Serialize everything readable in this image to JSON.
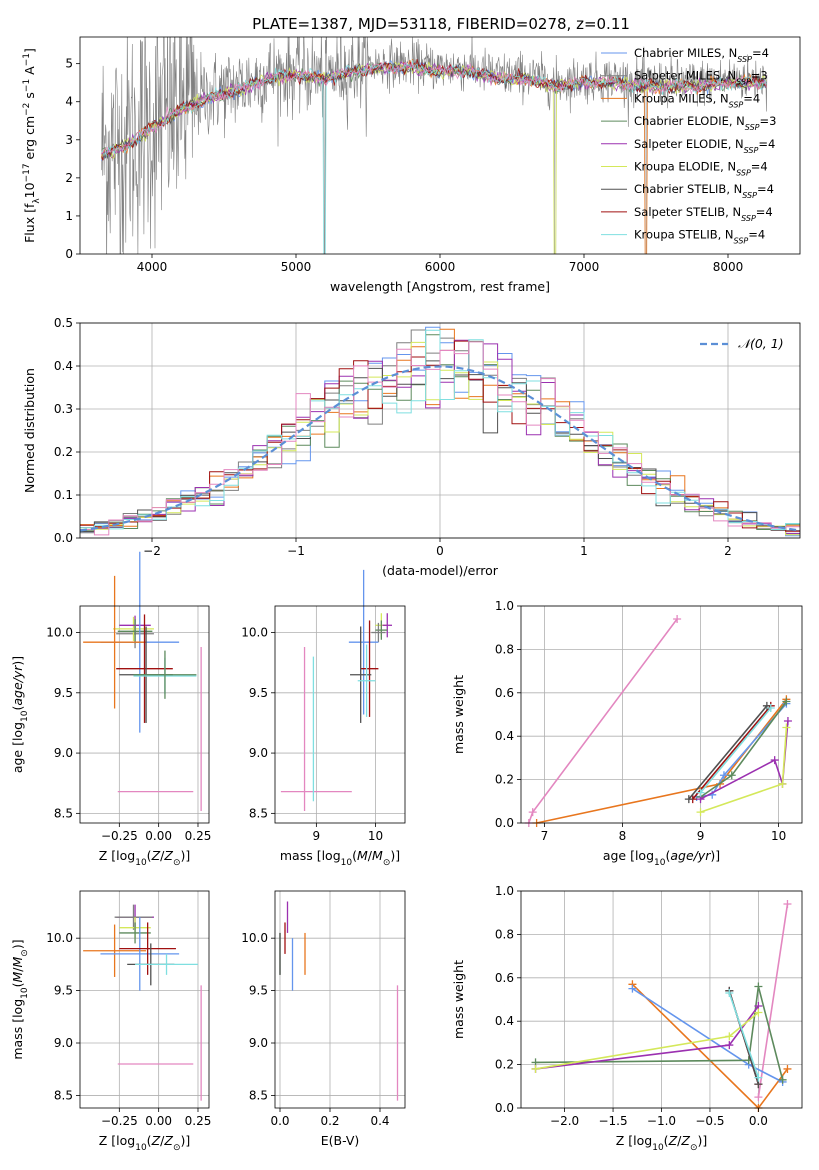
{
  "figure_title": "PLATE=1387, MJD=53118, FIBERID=0278, z=0.11",
  "series_styles": [
    {
      "name": "Chabrier MILES",
      "color": "#6495ed"
    },
    {
      "name": "Salpeter MILES",
      "color": "#7f7f7f"
    },
    {
      "name": "Kroupa MILES",
      "color": "#e8761e"
    },
    {
      "name": "Chabrier ELODIE",
      "color": "#5d8a5d"
    },
    {
      "name": "Salpeter ELODIE",
      "color": "#9b30b0"
    },
    {
      "name": "Kroupa ELODIE",
      "color": "#d4e85a"
    },
    {
      "name": "Chabrier STELIB",
      "color": "#505050"
    },
    {
      "name": "Salpeter STELIB",
      "color": "#a01010"
    },
    {
      "name": "Kroupa STELIB",
      "color": "#7fdfe0"
    },
    {
      "name": "pink",
      "color": "#e387c0"
    }
  ],
  "chart_data": [
    {
      "id": "spectrum",
      "type": "line",
      "title": "",
      "xlabel": "wavelength [Angstrom, rest frame]",
      "ylabel": "Flux [f_λ10^-17 erg cm^-2 s^-1 A^-1]",
      "xlim": [
        3500,
        8500
      ],
      "ylim": [
        0,
        5.7
      ],
      "xticks": [
        4000,
        5000,
        6000,
        7000,
        8000
      ],
      "yticks": [
        0,
        1,
        2,
        3,
        4,
        5
      ],
      "grid": false,
      "legend_position": "right",
      "legend": [
        {
          "name": "Chabrier MILES, N",
          "sub": "SSP",
          "suffix": "=4"
        },
        {
          "name": "Salpeter MILES, N",
          "sub": "SSP",
          "suffix": "=3"
        },
        {
          "name": "Kroupa MILES, N",
          "sub": "SSP",
          "suffix": "=4"
        },
        {
          "name": "Chabrier ELODIE, N",
          "sub": "SSP",
          "suffix": "=3"
        },
        {
          "name": "Salpeter ELODIE, N",
          "sub": "SSP",
          "suffix": "=4"
        },
        {
          "name": "Kroupa ELODIE, N",
          "sub": "SSP",
          "suffix": "=4"
        },
        {
          "name": "Chabrier STELIB, N",
          "sub": "SSP",
          "suffix": "=4"
        },
        {
          "name": "Salpeter STELIB, N",
          "sub": "SSP",
          "suffix": "=4"
        },
        {
          "name": "Kroupa STELIB, N",
          "sub": "SSP",
          "suffix": "=4"
        }
      ],
      "continuum": {
        "x": [
          3650,
          3800,
          4000,
          4200,
          4400,
          4600,
          4800,
          5000,
          5200,
          5400,
          5600,
          5800,
          6000,
          6200,
          6400,
          6600,
          6800,
          7000,
          7200,
          7400,
          7600,
          7800,
          8000,
          8270
        ],
        "y": [
          2.7,
          2.9,
          3.4,
          3.9,
          4.2,
          4.4,
          4.7,
          4.8,
          4.7,
          4.9,
          5.0,
          5.0,
          4.9,
          4.9,
          4.7,
          4.7,
          4.5,
          4.6,
          4.6,
          4.5,
          4.5,
          4.5,
          4.6,
          4.6
        ]
      },
      "data_x_range": [
        3650,
        8270
      ],
      "drops_x": [
        5200,
        6800,
        7430
      ]
    },
    {
      "id": "residuals",
      "type": "histogram",
      "title": "",
      "xlabel": "(data-model)/error",
      "ylabel": "Normed distribution",
      "xlim": [
        -2.5,
        2.5
      ],
      "ylim": [
        0,
        0.5
      ],
      "xticks": [
        -2,
        -1,
        0,
        1,
        2
      ],
      "yticks": [
        0.0,
        0.1,
        0.2,
        0.3,
        0.4,
        0.5
      ],
      "grid": true,
      "legend_position": "top-right",
      "legend": [
        {
          "name": "𝒩(0, 1)",
          "color": "#5b8fd6",
          "style": "dashed"
        }
      ],
      "bin_width": 0.1
    },
    {
      "id": "age_vs_Z",
      "type": "errorbar",
      "xlabel": "Z [log10(Z/Z⊙)]",
      "ylabel": "age [log10(age/yr)]",
      "xlim": [
        -0.5,
        0.32
      ],
      "ylim": [
        8.42,
        10.22
      ],
      "xticks": [
        -0.25,
        0.0,
        0.25
      ],
      "yticks": [
        8.5,
        9.0,
        9.5,
        10.0
      ],
      "grid": true,
      "points": [
        {
          "x": -0.15,
          "y": 9.99,
          "xerr": 0.12,
          "yerr": 0.12,
          "color": "#7f7f7f"
        },
        {
          "x": -0.16,
          "y": 10.03,
          "xerr": 0.13,
          "yerr": 0.1,
          "color": "#d4e85a"
        },
        {
          "x": -0.15,
          "y": 10.06,
          "xerr": 0.1,
          "yerr": 0.08,
          "color": "#9b30b0"
        },
        {
          "x": -0.15,
          "y": 10.01,
          "xerr": 0.11,
          "yerr": 0.1,
          "color": "#5d8a5d"
        },
        {
          "x": -0.12,
          "y": 9.92,
          "xerr": 0.25,
          "yerr": 0.75,
          "color": "#6495ed"
        },
        {
          "x": -0.28,
          "y": 9.92,
          "xerr": 0.2,
          "yerr": 0.55,
          "color": "#e8761e"
        },
        {
          "x": -0.09,
          "y": 9.7,
          "xerr": 0.18,
          "yerr": 0.45,
          "color": "#a01010"
        },
        {
          "x": -0.08,
          "y": 9.65,
          "xerr": 0.17,
          "yerr": 0.4,
          "color": "#505050"
        },
        {
          "x": 0.04,
          "y": 9.64,
          "xerr": 0.2,
          "yerr": 0.15,
          "color": "#7fdfe0"
        },
        {
          "x": 0.04,
          "y": 9.65,
          "xerr": 0.2,
          "yerr": 0.2,
          "color": "#5d8a5d"
        },
        {
          "x": -0.02,
          "y": 8.68,
          "xerr": 0.24,
          "yerr": 0.0,
          "color": "#e387c0"
        },
        {
          "x": 0.27,
          "y": 9.2,
          "xerr": 0.0,
          "yerr": 0.68,
          "color": "#e387c0"
        }
      ]
    },
    {
      "id": "age_vs_mass",
      "type": "errorbar",
      "xlabel": "mass [log10(M/M⊙)]",
      "ylabel": "",
      "xlim": [
        8.3,
        10.5
      ],
      "ylim": [
        8.42,
        10.22
      ],
      "xticks": [
        9,
        10
      ],
      "yticks": [
        8.5,
        9.0,
        9.5,
        10.0
      ],
      "grid": true,
      "points": [
        {
          "x": 10.1,
          "y": 10.06,
          "xerr": 0.1,
          "yerr": 0.1,
          "color": "#d4e85a"
        },
        {
          "x": 10.2,
          "y": 10.06,
          "xerr": 0.08,
          "yerr": 0.1,
          "color": "#9b30b0"
        },
        {
          "x": 10.1,
          "y": 10.02,
          "xerr": 0.1,
          "yerr": 0.08,
          "color": "#5d8a5d"
        },
        {
          "x": 10.05,
          "y": 10.0,
          "xerr": 0.12,
          "yerr": 0.08,
          "color": "#7f7f7f"
        },
        {
          "x": 9.8,
          "y": 9.92,
          "xerr": 0.25,
          "yerr": 0.6,
          "color": "#6495ed"
        },
        {
          "x": 9.9,
          "y": 9.7,
          "xerr": 0.15,
          "yerr": 0.4,
          "color": "#a01010"
        },
        {
          "x": 9.75,
          "y": 9.65,
          "xerr": 0.18,
          "yerr": 0.4,
          "color": "#505050"
        },
        {
          "x": 9.85,
          "y": 9.6,
          "xerr": 0.15,
          "yerr": 0.3,
          "color": "#7fdfe0"
        },
        {
          "x": 9.0,
          "y": 8.68,
          "xerr": 0.6,
          "yerr": 0.0,
          "color": "#e387c0"
        },
        {
          "x": 8.8,
          "y": 9.2,
          "xerr": 0.0,
          "yerr": 0.68,
          "color": "#e387c0"
        },
        {
          "x": 8.95,
          "y": 9.2,
          "xerr": 0.0,
          "yerr": 0.6,
          "color": "#7fdfe0"
        }
      ]
    },
    {
      "id": "weight_vs_age",
      "type": "line",
      "xlabel": "age [log10(age/yr)]",
      "ylabel": "mass weight",
      "xlim": [
        6.7,
        10.3
      ],
      "ylim": [
        0,
        1.0
      ],
      "xticks": [
        7,
        8,
        9,
        10
      ],
      "yticks": [
        0.0,
        0.2,
        0.4,
        0.6,
        0.8,
        1.0
      ],
      "grid": true,
      "series": [
        {
          "color": "#e387c0",
          "x": [
            6.8,
            6.85,
            8.7
          ],
          "y": [
            0.0,
            0.05,
            0.94
          ]
        },
        {
          "color": "#e8761e",
          "x": [
            6.9,
            9.25,
            10.1
          ],
          "y": [
            0.0,
            0.18,
            0.57
          ]
        },
        {
          "color": "#6495ed",
          "x": [
            8.95,
            9.15,
            9.3,
            10.1
          ],
          "y": [
            0.12,
            0.13,
            0.22,
            0.55
          ]
        },
        {
          "color": "#5d8a5d",
          "x": [
            9.0,
            9.4,
            10.1
          ],
          "y": [
            0.12,
            0.22,
            0.56
          ]
        },
        {
          "color": "#9b30b0",
          "x": [
            9.0,
            9.95,
            10.05,
            10.12
          ],
          "y": [
            0.11,
            0.29,
            0.18,
            0.47
          ]
        },
        {
          "color": "#d4e85a",
          "x": [
            9.0,
            10.05,
            10.1
          ],
          "y": [
            0.05,
            0.18,
            0.44
          ]
        },
        {
          "color": "#a01010",
          "x": [
            8.9,
            9.9
          ],
          "y": [
            0.11,
            0.54
          ]
        },
        {
          "color": "#505050",
          "x": [
            8.85,
            9.85
          ],
          "y": [
            0.11,
            0.54
          ]
        },
        {
          "color": "#7fdfe0",
          "x": [
            9.0,
            9.9
          ],
          "y": [
            0.14,
            0.53
          ]
        }
      ]
    },
    {
      "id": "mass_vs_Z",
      "type": "errorbar",
      "xlabel": "Z [log10(Z/Z⊙)]",
      "ylabel": "mass [log10(M/M⊙)]",
      "xlim": [
        -0.5,
        0.32
      ],
      "ylim": [
        8.38,
        10.45
      ],
      "xticks": [
        -0.25,
        0.0,
        0.25
      ],
      "yticks": [
        8.5,
        9.0,
        9.5,
        10.0
      ],
      "grid": true,
      "points": [
        {
          "x": -0.15,
          "y": 10.2,
          "xerr": 0.12,
          "yerr": 0.12,
          "color": "#9b30b0"
        },
        {
          "x": -0.16,
          "y": 10.2,
          "xerr": 0.12,
          "yerr": 0.12,
          "color": "#7f7f7f"
        },
        {
          "x": -0.15,
          "y": 10.1,
          "xerr": 0.1,
          "yerr": 0.1,
          "color": "#d4e85a"
        },
        {
          "x": -0.15,
          "y": 10.05,
          "xerr": 0.1,
          "yerr": 0.1,
          "color": "#5d8a5d"
        },
        {
          "x": -0.28,
          "y": 9.88,
          "xerr": 0.2,
          "yerr": 0.25,
          "color": "#e8761e"
        },
        {
          "x": -0.12,
          "y": 9.85,
          "xerr": 0.25,
          "yerr": 0.35,
          "color": "#6495ed"
        },
        {
          "x": -0.07,
          "y": 9.9,
          "xerr": 0.18,
          "yerr": 0.25,
          "color": "#a01010"
        },
        {
          "x": -0.05,
          "y": 9.75,
          "xerr": 0.15,
          "yerr": 0.2,
          "color": "#505050"
        },
        {
          "x": 0.05,
          "y": 9.75,
          "xerr": 0.2,
          "yerr": 0.1,
          "color": "#7fdfe0"
        },
        {
          "x": -0.02,
          "y": 8.8,
          "xerr": 0.24,
          "yerr": 0.0,
          "color": "#e387c0"
        },
        {
          "x": 0.27,
          "y": 9.0,
          "xerr": 0.0,
          "yerr": 0.55,
          "color": "#e387c0"
        }
      ]
    },
    {
      "id": "mass_vs_EBV",
      "type": "errorbar",
      "xlabel": "E(B-V)",
      "ylabel": "",
      "xlim": [
        -0.02,
        0.5
      ],
      "ylim": [
        8.38,
        10.45
      ],
      "xticks": [
        0.0,
        0.2,
        0.4
      ],
      "yticks": [
        8.5,
        9.0,
        9.5,
        10.0
      ],
      "grid": true,
      "points": [
        {
          "x": 0.03,
          "y": 10.2,
          "xerr": 0.0,
          "yerr": 0.15,
          "color": "#9b30b0"
        },
        {
          "x": 0.02,
          "y": 10.0,
          "xerr": 0.0,
          "yerr": 0.15,
          "color": "#a01010"
        },
        {
          "x": 0.0,
          "y": 9.85,
          "xerr": 0.0,
          "yerr": 0.2,
          "color": "#5d8a5d"
        },
        {
          "x": 0.0,
          "y": 9.85,
          "xerr": 0.0,
          "yerr": 0.2,
          "color": "#505050"
        },
        {
          "x": 0.05,
          "y": 9.75,
          "xerr": 0.0,
          "yerr": 0.25,
          "color": "#6495ed"
        },
        {
          "x": 0.1,
          "y": 9.85,
          "xerr": 0.0,
          "yerr": 0.2,
          "color": "#e8761e"
        },
        {
          "x": 0.47,
          "y": 9.0,
          "xerr": 0.0,
          "yerr": 0.55,
          "color": "#e387c0"
        }
      ]
    },
    {
      "id": "weight_vs_Z",
      "type": "line",
      "xlabel": "Z [log10(Z/Z⊙)]",
      "ylabel": "mass weight",
      "xlim": [
        -2.45,
        0.45
      ],
      "ylim": [
        0,
        1.0
      ],
      "xticks": [
        -2.0,
        -1.5,
        -1.0,
        -0.5,
        0.0
      ],
      "yticks": [
        0.0,
        0.2,
        0.4,
        0.6,
        0.8,
        1.0
      ],
      "grid": true,
      "series": [
        {
          "color": "#e387c0",
          "x": [
            0.0,
            0.3
          ],
          "y": [
            0.05,
            0.94
          ]
        },
        {
          "color": "#e8761e",
          "x": [
            -1.3,
            0.0,
            0.3
          ],
          "y": [
            0.57,
            0.0,
            0.18
          ]
        },
        {
          "color": "#6495ed",
          "x": [
            -1.3,
            -0.1,
            0.25
          ],
          "y": [
            0.55,
            0.2,
            0.12
          ]
        },
        {
          "color": "#5d8a5d",
          "x": [
            -2.3,
            -0.1,
            0.0,
            0.25
          ],
          "y": [
            0.21,
            0.22,
            0.56,
            0.13
          ]
        },
        {
          "color": "#9b30b0",
          "x": [
            -2.3,
            -0.3,
            0.0
          ],
          "y": [
            0.18,
            0.29,
            0.47
          ]
        },
        {
          "color": "#d4e85a",
          "x": [
            -2.3,
            -0.3,
            0.0
          ],
          "y": [
            0.18,
            0.33,
            0.44
          ]
        },
        {
          "color": "#a01010",
          "x": [
            -0.3,
            0.0
          ],
          "y": [
            0.54,
            0.11
          ]
        },
        {
          "color": "#505050",
          "x": [
            -0.3,
            0.0
          ],
          "y": [
            0.54,
            0.11
          ]
        },
        {
          "color": "#7fdfe0",
          "x": [
            -0.3,
            0.0
          ],
          "y": [
            0.53,
            0.14
          ]
        }
      ]
    }
  ]
}
